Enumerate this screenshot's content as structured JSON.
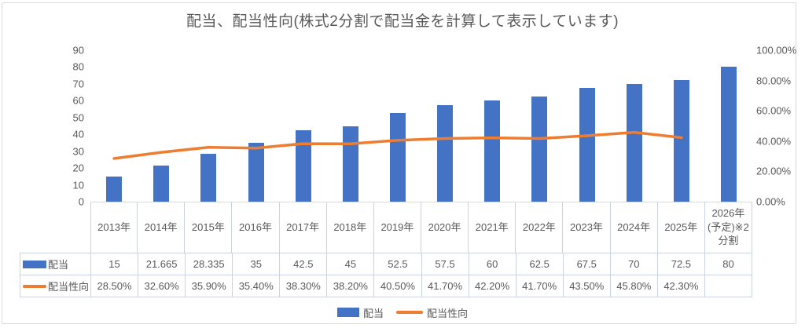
{
  "title": "配当、配当性向(株式2分割で配当金を計算して表示しています)",
  "colors": {
    "bar": "#4472C4",
    "line": "#ED7D31",
    "text": "#595959",
    "grid_border": "#ccd3e0",
    "frame_border": "#d9d9d9"
  },
  "chart_data": {
    "type": "bar",
    "subtype": "combo-bar-line",
    "title": "配当、配当性向(株式2分割で配当金を計算して表示しています)",
    "categories": [
      "2013年",
      "2014年",
      "2015年",
      "2016年",
      "2017年",
      "2018年",
      "2019年",
      "2020年",
      "2021年",
      "2022年",
      "2023年",
      "2024年",
      "2025年",
      "2026年(予定)※2分割"
    ],
    "series": [
      {
        "name": "配当",
        "type": "bar",
        "axis": "left",
        "values": [
          15,
          21.665,
          28.335,
          35,
          42.5,
          45,
          52.5,
          57.5,
          60,
          62.5,
          67.5,
          70,
          72.5,
          80
        ]
      },
      {
        "name": "配当性向",
        "type": "line",
        "axis": "right",
        "values": [
          28.5,
          32.6,
          35.9,
          35.4,
          38.3,
          38.2,
          40.5,
          41.7,
          42.2,
          41.7,
          43.5,
          45.8,
          42.3,
          null
        ]
      }
    ],
    "left_axis": {
      "ticks": [
        "90",
        "80",
        "70",
        "60",
        "50",
        "40",
        "30",
        "20",
        "10",
        "0"
      ],
      "min": 0,
      "max": 90
    },
    "right_axis": {
      "ticks": [
        "100.00%",
        "80.00%",
        "60.00%",
        "40.00%",
        "20.00%",
        "0.00%"
      ],
      "min": 0,
      "max": 100
    },
    "grid": false,
    "legend_position": "bottom"
  },
  "table": {
    "rows": [
      {
        "label": "配当",
        "swatch": "bar",
        "values": [
          "15",
          "21.665",
          "28.335",
          "35",
          "42.5",
          "45",
          "52.5",
          "57.5",
          "60",
          "62.5",
          "67.5",
          "70",
          "72.5",
          "80"
        ]
      },
      {
        "label": "配当性向",
        "swatch": "line",
        "values": [
          "28.50%",
          "32.60%",
          "35.90%",
          "35.40%",
          "38.30%",
          "38.20%",
          "40.50%",
          "41.70%",
          "42.20%",
          "41.70%",
          "43.50%",
          "45.80%",
          "42.30%",
          ""
        ]
      }
    ]
  },
  "legend": {
    "items": [
      {
        "label": "配当",
        "swatch": "bar"
      },
      {
        "label": "配当性向",
        "swatch": "line"
      }
    ]
  }
}
